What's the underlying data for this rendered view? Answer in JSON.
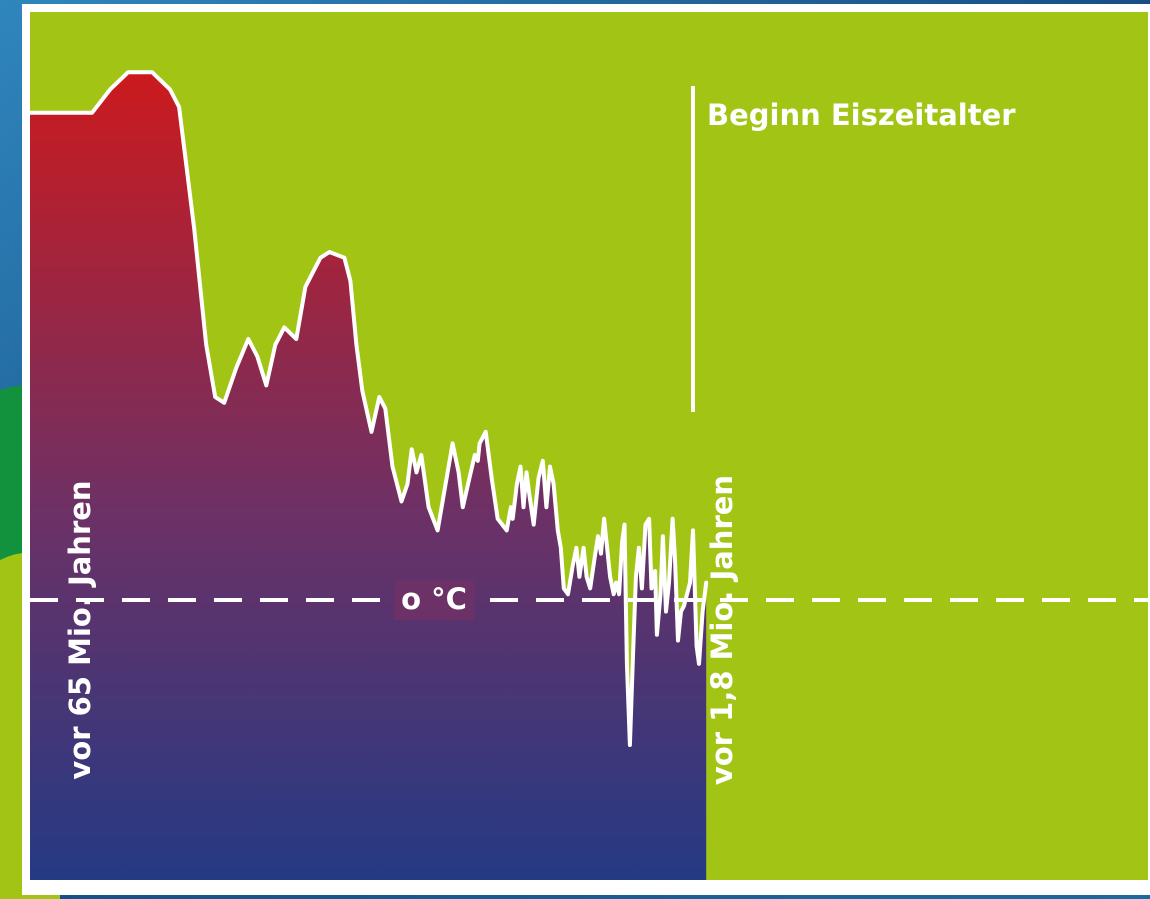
{
  "chart_data": {
    "type": "area",
    "title": "",
    "xlabel": "",
    "ylabel": "",
    "annotations": {
      "start_label": "vor 65 Mio. Jahren",
      "mid_label": "vor 1,8 Mio. Jahren",
      "event_label": "Beginn Eiszeitalter",
      "zero_label": "o °C"
    },
    "x_markers_mio_years_ago": {
      "start": 65,
      "ice_age": 1.8
    },
    "series": [
      {
        "values": [
          [
            0.0,
            84
          ],
          [
            0.03,
            88
          ],
          [
            0.06,
            91
          ],
          [
            0.1,
            91
          ],
          [
            0.13,
            88
          ],
          [
            0.145,
            85
          ],
          [
            0.17,
            64
          ],
          [
            0.19,
            44
          ],
          [
            0.205,
            35
          ],
          [
            0.22,
            34
          ],
          [
            0.24,
            40
          ],
          [
            0.26,
            45
          ],
          [
            0.275,
            42
          ],
          [
            0.29,
            37
          ],
          [
            0.305,
            44
          ],
          [
            0.32,
            47
          ],
          [
            0.34,
            45
          ],
          [
            0.355,
            54
          ],
          [
            0.38,
            59
          ],
          [
            0.395,
            60
          ],
          [
            0.42,
            59
          ],
          [
            0.43,
            55
          ],
          [
            0.44,
            44
          ],
          [
            0.45,
            36
          ],
          [
            0.465,
            29
          ],
          [
            0.478,
            35
          ],
          [
            0.488,
            33
          ],
          [
            0.5,
            23
          ],
          [
            0.515,
            17
          ],
          [
            0.525,
            20
          ],
          [
            0.532,
            26
          ],
          [
            0.54,
            22
          ],
          [
            0.548,
            25
          ],
          [
            0.56,
            16
          ],
          [
            0.575,
            12
          ],
          [
            0.59,
            21
          ],
          [
            0.6,
            27
          ],
          [
            0.61,
            22
          ],
          [
            0.617,
            16
          ],
          [
            0.628,
            21
          ],
          [
            0.637,
            25
          ],
          [
            0.642,
            24
          ],
          [
            0.645,
            27
          ],
          [
            0.655,
            29
          ],
          [
            0.665,
            21
          ],
          [
            0.675,
            14
          ],
          [
            0.69,
            12
          ],
          [
            0.697,
            16
          ],
          [
            0.7,
            14
          ],
          [
            0.707,
            20
          ],
          [
            0.713,
            23
          ],
          [
            0.718,
            16
          ],
          [
            0.723,
            22
          ],
          [
            0.728,
            18
          ],
          [
            0.735,
            13
          ],
          [
            0.743,
            21
          ],
          [
            0.75,
            24
          ],
          [
            0.756,
            16
          ],
          [
            0.762,
            23
          ],
          [
            0.768,
            20
          ],
          [
            0.775,
            12
          ],
          [
            0.78,
            9
          ],
          [
            0.785,
            2
          ],
          [
            0.792,
            1
          ],
          [
            0.8,
            6
          ],
          [
            0.806,
            9
          ],
          [
            0.811,
            4
          ],
          [
            0.818,
            9
          ],
          [
            0.823,
            4
          ],
          [
            0.829,
            2
          ],
          [
            0.836,
            7
          ],
          [
            0.842,
            11
          ],
          [
            0.847,
            8
          ],
          [
            0.852,
            14
          ],
          [
            0.857,
            9
          ],
          [
            0.862,
            4
          ],
          [
            0.868,
            1
          ],
          [
            0.872,
            3
          ],
          [
            0.877,
            1
          ],
          [
            0.882,
            10
          ],
          [
            0.886,
            13
          ],
          [
            0.89,
            -11
          ],
          [
            0.895,
            -25
          ],
          [
            0.9,
            -10
          ],
          [
            0.905,
            4
          ],
          [
            0.91,
            9
          ],
          [
            0.915,
            2
          ],
          [
            0.921,
            13
          ],
          [
            0.927,
            14
          ],
          [
            0.931,
            2
          ],
          [
            0.937,
            5
          ],
          [
            0.94,
            -6
          ],
          [
            0.946,
            1
          ],
          [
            0.95,
            11
          ],
          [
            0.955,
            -2
          ],
          [
            0.96,
            3
          ],
          [
            0.966,
            14
          ],
          [
            0.97,
            7
          ],
          [
            0.975,
            -7
          ],
          [
            0.98,
            -2
          ],
          [
            0.985,
            -1
          ],
          [
            0.99,
            1
          ],
          [
            0.995,
            3
          ],
          [
            1.0,
            12
          ],
          [
            1.006,
            -8
          ],
          [
            1.01,
            -11
          ],
          [
            1.016,
            -2
          ],
          [
            1.022,
            3
          ]
        ]
      }
    ],
    "ylim": [
      -40,
      100
    ],
    "colors": {
      "panel": "#a2c515",
      "hot": "#cc1a1d",
      "mid": "#6c3166",
      "cold": "#243a84",
      "line": "#ffffff",
      "frame_blue": "#1d5f93",
      "frame_green": "#12923c"
    }
  }
}
